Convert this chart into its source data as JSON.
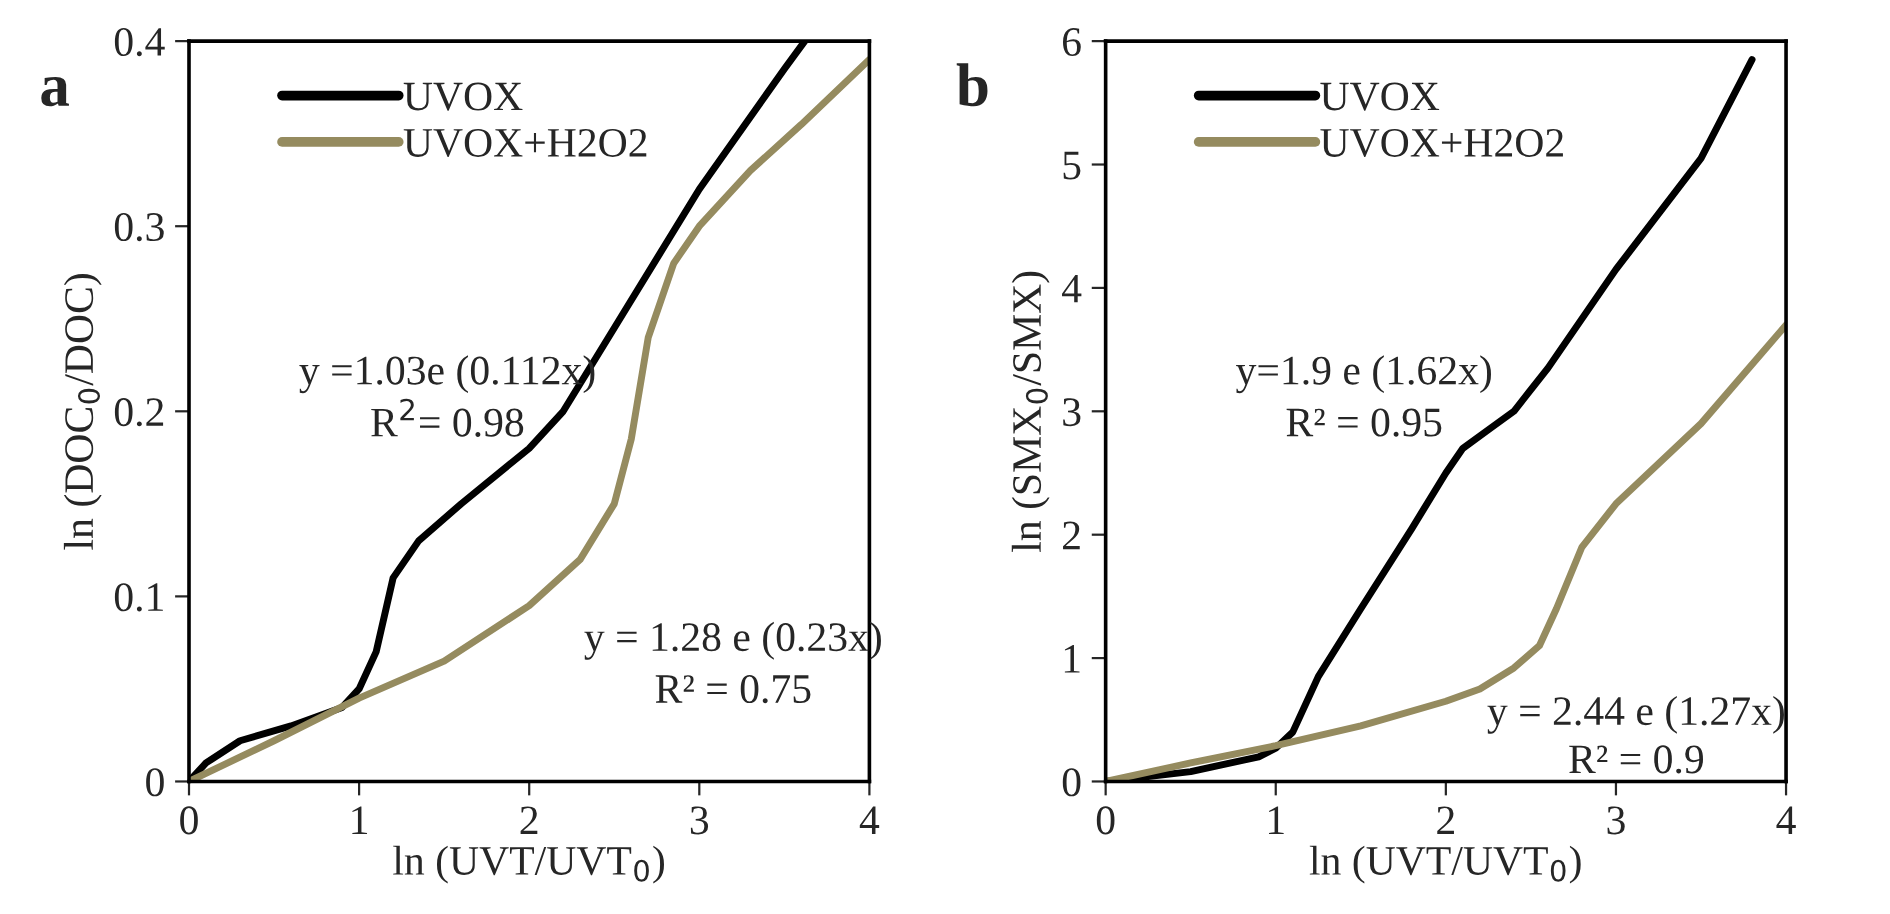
{
  "chart_data": [
    {
      "type": "line",
      "title": "a",
      "xlabel": "ln (UVT/UVT$_{0}$)",
      "ylabel": "ln (DOC$_{0}$/DOC)",
      "xlim": [
        0,
        4
      ],
      "ylim": [
        0,
        0.4
      ],
      "xticks": [
        0,
        1,
        2,
        3,
        4
      ],
      "yticks": [
        0,
        0.1,
        0.2,
        0.3,
        0.4
      ],
      "grid": false,
      "legend": "top left",
      "marker": "none",
      "line_style": "solid",
      "annotations": [
        "y =1.03e (0.112x)",
        "R$^{2}$= 0.98",
        "y = 1.28 e (0.23x)",
        "R² = 0.75"
      ],
      "series": [
        {
          "name": "UVOX",
          "color": "#000000",
          "x": [
            0,
            0.1,
            0.3,
            0.6,
            0.9,
            1.0,
            1.1,
            1.2,
            1.35,
            1.6,
            2.0,
            2.2,
            2.5,
            3.0,
            3.5,
            3.62
          ],
          "values": [
            0,
            0.01,
            0.022,
            0.03,
            0.04,
            0.05,
            0.07,
            0.11,
            0.13,
            0.15,
            0.18,
            0.2,
            0.245,
            0.32,
            0.385,
            0.4
          ]
        },
        {
          "name": "UVOX+H2O2",
          "color": "#958b5f",
          "x": [
            0,
            0.5,
            1.0,
            1.5,
            2.0,
            2.3,
            2.5,
            2.6,
            2.7,
            2.85,
            3.0,
            3.3,
            3.6,
            4.0
          ],
          "values": [
            0,
            0.022,
            0.045,
            0.065,
            0.095,
            0.12,
            0.15,
            0.185,
            0.24,
            0.28,
            0.3,
            0.33,
            0.355,
            0.39
          ]
        }
      ]
    },
    {
      "type": "line",
      "title": "b",
      "xlabel": "ln (UVT/UVT$_{0}$)",
      "ylabel": "ln (SMX$_{0}$/SMX)",
      "xlim": [
        0,
        4
      ],
      "ylim": [
        0,
        6
      ],
      "xticks": [
        0,
        1,
        2,
        3,
        4
      ],
      "yticks": [
        0,
        1,
        2,
        3,
        4,
        5,
        6
      ],
      "grid": false,
      "legend": "top left",
      "marker": "none",
      "line_style": "solid",
      "annotations": [
        "y=1.9 e (1.62x)",
        "R² = 0.95",
        "y = 2.44 e (1.27x)",
        "R² = 0.9"
      ],
      "series": [
        {
          "name": "UVOX",
          "color": "#000000",
          "x": [
            0,
            0.5,
            0.9,
            1.0,
            1.1,
            1.25,
            1.5,
            1.8,
            2.0,
            2.1,
            2.25,
            2.4,
            2.6,
            3.0,
            3.5,
            3.8
          ],
          "values": [
            0,
            0.08,
            0.2,
            0.27,
            0.4,
            0.85,
            1.4,
            2.05,
            2.5,
            2.7,
            2.85,
            3.0,
            3.35,
            4.15,
            5.05,
            5.85
          ]
        },
        {
          "name": "UVOX+H2O2",
          "color": "#958b5f",
          "x": [
            0,
            0.5,
            1.0,
            1.5,
            2.0,
            2.2,
            2.4,
            2.55,
            2.65,
            2.8,
            3.0,
            3.5,
            4.0
          ],
          "values": [
            0,
            0.15,
            0.29,
            0.45,
            0.65,
            0.75,
            0.92,
            1.1,
            1.4,
            1.9,
            2.25,
            2.9,
            3.7
          ]
        }
      ]
    }
  ]
}
